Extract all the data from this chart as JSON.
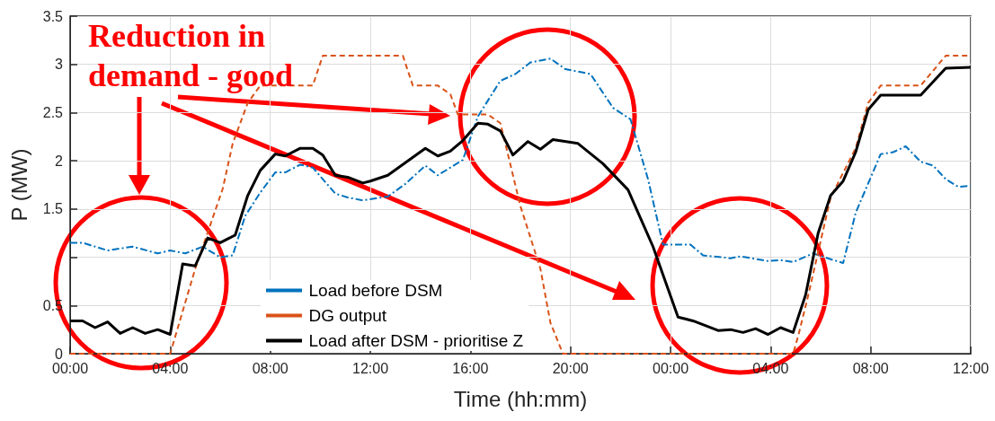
{
  "chart_data": {
    "type": "line",
    "xlabel": "Time (hh:mm)",
    "ylabel": "P (MW)",
    "xlim": [
      "2000-01-01T00:00",
      "2000-01-02T12:00"
    ],
    "xticks": [
      {
        "value": "2000-01-01T00:00",
        "label": "00:00"
      },
      {
        "value": "2000-01-01T04:00",
        "label": "04:00"
      },
      {
        "value": "2000-01-01T08:00",
        "label": "08:00"
      },
      {
        "value": "2000-01-01T12:00",
        "label": "12:00"
      },
      {
        "value": "2000-01-01T16:00",
        "label": "16:00"
      },
      {
        "value": "2000-01-01T20:00",
        "label": "20:00"
      },
      {
        "value": "2000-01-02T00:00",
        "label": "00:00"
      },
      {
        "value": "2000-01-02T04:00",
        "label": "04:00"
      },
      {
        "value": "2000-01-02T08:00",
        "label": "08:00"
      },
      {
        "value": "2000-01-02T12:00",
        "label": "12:00"
      }
    ],
    "ylim": [
      0,
      3.5
    ],
    "yticks": [
      0,
      0.5,
      {
        "value": 1,
        "label": null
      },
      1.5,
      2,
      2.5,
      3,
      3.5
    ],
    "grid": true,
    "legend": "bottom",
    "annotations": [
      "Reduction in demand - good"
    ],
    "series": [
      {
        "name": "Load before DSM",
        "color": "#0072bd",
        "line_style": "dotted",
        "x": [
          "2000-01-01T00:00",
          "2000-01-01T00:30",
          "2000-01-01T01:30",
          "2000-01-01T02:30",
          "2000-01-01T03:30",
          "2000-01-01T04:00",
          "2000-01-01T04:36",
          "2000-01-01T05:18",
          "2000-01-01T06:00",
          "2000-01-01T06:30",
          "2000-01-01T07:00",
          "2000-01-01T07:36",
          "2000-01-01T08:12",
          "2000-01-01T08:36",
          "2000-01-01T09:12",
          "2000-01-01T09:42",
          "2000-01-01T10:06",
          "2000-01-01T10:36",
          "2000-01-01T11:06",
          "2000-01-01T11:42",
          "2000-01-01T12:42",
          "2000-01-01T13:24",
          "2000-01-01T14:12",
          "2000-01-01T14:42",
          "2000-01-01T15:42",
          "2000-01-01T16:18",
          "2000-01-01T17:12",
          "2000-01-01T17:48",
          "2000-01-01T18:24",
          "2000-01-01T19:12",
          "2000-01-01T19:48",
          "2000-01-01T20:48",
          "2000-01-01T21:42",
          "2000-01-01T22:24",
          "2000-01-01T23:06",
          "2000-01-01T23:42",
          "2000-01-02T00:48",
          "2000-01-02T01:18",
          "2000-01-02T02:24",
          "2000-01-02T02:48",
          "2000-01-02T03:54",
          "2000-01-02T04:24",
          "2000-01-02T04:54",
          "2000-01-02T05:42",
          "2000-01-02T06:24",
          "2000-01-02T06:54",
          "2000-01-02T07:24",
          "2000-01-02T08:24",
          "2000-01-02T08:54",
          "2000-01-02T09:24",
          "2000-01-02T10:00",
          "2000-01-02T10:30",
          "2000-01-02T11:00",
          "2000-01-02T11:30",
          "2000-01-02T12:00"
        ],
        "values": [
          1.15,
          1.15,
          1.07,
          1.11,
          1.04,
          1.07,
          1.04,
          1.11,
          1.0,
          1.02,
          1.43,
          1.67,
          1.88,
          1.88,
          1.96,
          1.93,
          1.81,
          1.66,
          1.62,
          1.59,
          1.63,
          1.76,
          1.95,
          1.85,
          2.01,
          2.46,
          2.83,
          2.9,
          3.02,
          3.06,
          2.95,
          2.9,
          2.55,
          2.43,
          1.81,
          1.13,
          1.13,
          1.02,
          0.99,
          1.01,
          0.96,
          0.97,
          0.95,
          1.04,
          0.98,
          0.94,
          1.46,
          2.07,
          2.09,
          2.15,
          1.99,
          1.95,
          1.81,
          1.73,
          1.74
        ]
      },
      {
        "name": "DG output",
        "color": "#d95319",
        "line_style": "dashed",
        "x": [
          "2000-01-01T00:00",
          "2000-01-01T04:00",
          "2000-01-01T05:00",
          "2000-01-01T06:06",
          "2000-01-01T06:30",
          "2000-01-01T07:06",
          "2000-01-01T07:36",
          "2000-01-01T09:42",
          "2000-01-01T10:06",
          "2000-01-01T13:18",
          "2000-01-01T13:42",
          "2000-01-01T14:42",
          "2000-01-01T15:12",
          "2000-01-01T15:30",
          "2000-01-01T16:42",
          "2000-01-01T17:12",
          "2000-01-01T18:00",
          "2000-01-01T18:48",
          "2000-01-01T19:12",
          "2000-01-01T19:42",
          "2000-01-02T04:54",
          "2000-01-02T05:06",
          "2000-01-02T05:30",
          "2000-01-02T06:24",
          "2000-01-02T07:24",
          "2000-01-02T07:54",
          "2000-01-02T08:24",
          "2000-01-02T10:00",
          "2000-01-02T11:00",
          "2000-01-02T12:00"
        ],
        "values": [
          0,
          0,
          0.88,
          1.71,
          2.18,
          2.6,
          2.78,
          2.78,
          3.09,
          3.09,
          2.78,
          2.78,
          2.69,
          2.48,
          2.48,
          2.39,
          1.53,
          0.88,
          0.32,
          0,
          0,
          0.18,
          0.6,
          1.62,
          2.13,
          2.6,
          2.78,
          2.78,
          3.09,
          3.09
        ]
      },
      {
        "name": "Load after DSM - prioritise Z",
        "color": "#000000",
        "line_style": "solid",
        "x": [
          "2000-01-01T00:00",
          "2000-01-01T00:30",
          "2000-01-01T01:00",
          "2000-01-01T01:30",
          "2000-01-01T02:00",
          "2000-01-01T02:30",
          "2000-01-01T03:00",
          "2000-01-01T03:30",
          "2000-01-01T04:00",
          "2000-01-01T04:30",
          "2000-01-01T05:00",
          "2000-01-01T05:30",
          "2000-01-01T06:00",
          "2000-01-01T06:36",
          "2000-01-01T07:06",
          "2000-01-01T07:36",
          "2000-01-01T08:12",
          "2000-01-01T08:36",
          "2000-01-01T09:12",
          "2000-01-01T09:42",
          "2000-01-01T10:06",
          "2000-01-01T10:36",
          "2000-01-01T11:06",
          "2000-01-01T11:42",
          "2000-01-01T12:00",
          "2000-01-01T12:42",
          "2000-01-01T13:24",
          "2000-01-01T14:12",
          "2000-01-01T14:42",
          "2000-01-01T15:12",
          "2000-01-01T15:42",
          "2000-01-01T16:18",
          "2000-01-01T16:42",
          "2000-01-01T17:12",
          "2000-01-01T17:42",
          "2000-01-01T18:18",
          "2000-01-01T18:48",
          "2000-01-01T19:18",
          "2000-01-01T20:18",
          "2000-01-01T21:18",
          "2000-01-01T22:18",
          "2000-01-01T23:18",
          "2000-01-02T00:18",
          "2000-01-02T00:54",
          "2000-01-02T01:54",
          "2000-01-02T02:24",
          "2000-01-02T02:54",
          "2000-01-02T03:24",
          "2000-01-02T03:54",
          "2000-01-02T04:24",
          "2000-01-02T04:54",
          "2000-01-02T05:24",
          "2000-01-02T05:54",
          "2000-01-02T06:24",
          "2000-01-02T06:54",
          "2000-01-02T07:24",
          "2000-01-02T07:54",
          "2000-01-02T08:24",
          "2000-01-02T10:00",
          "2000-01-02T11:00",
          "2000-01-02T12:00"
        ],
        "values": [
          0.34,
          0.34,
          0.27,
          0.33,
          0.21,
          0.27,
          0.21,
          0.25,
          0.2,
          0.93,
          0.91,
          1.2,
          1.15,
          1.23,
          1.64,
          1.9,
          2.07,
          2.05,
          2.13,
          2.13,
          2.06,
          1.85,
          1.83,
          1.77,
          1.79,
          1.85,
          1.98,
          2.13,
          2.05,
          2.1,
          2.21,
          2.39,
          2.38,
          2.31,
          2.06,
          2.2,
          2.12,
          2.22,
          2.18,
          1.97,
          1.7,
          1.11,
          0.38,
          0.34,
          0.24,
          0.25,
          0.22,
          0.26,
          0.2,
          0.27,
          0.22,
          0.61,
          1.25,
          1.64,
          1.79,
          2.09,
          2.53,
          2.68,
          2.68,
          2.96,
          2.97
        ]
      }
    ]
  }
}
